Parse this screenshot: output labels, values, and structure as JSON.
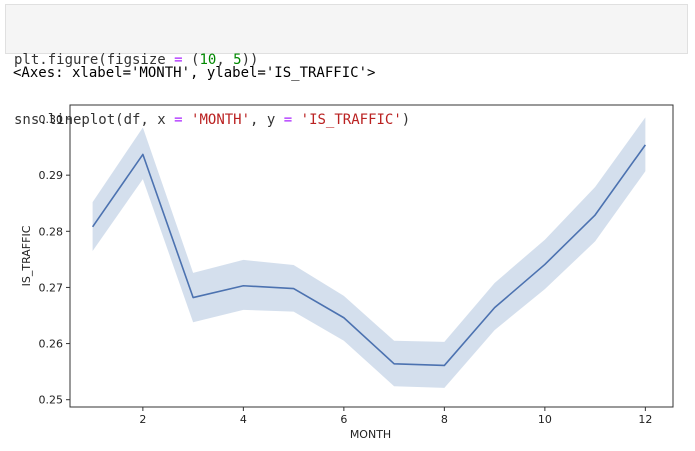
{
  "code_cell": {
    "line1": {
      "fn": "plt.figure(figsize ",
      "op": "=",
      "paren_open": " (",
      "n1": "10",
      "sep": ", ",
      "n2": "5",
      "paren_close": "))"
    },
    "line2": {
      "fn": "sns.lineplot(df, x ",
      "op1": "=",
      "x_val": "'MONTH'",
      "sep": ", y ",
      "op2": "=",
      "y_val": "'IS_TRAFFIC'",
      "close": ")"
    }
  },
  "output": {
    "text": "<Axes: xlabel='MONTH', ylabel='IS_TRAFFIC'>"
  },
  "colors": {
    "line": "#4c72b0",
    "band": "#c6d4e7",
    "axis": "#333333"
  },
  "chart_data": {
    "type": "line",
    "xlabel": "MONTH",
    "ylabel": "IS_TRAFFIC",
    "xlim": [
      0.55,
      12.55
    ],
    "ylim": [
      0.2487,
      0.3025
    ],
    "xticks": [
      2,
      4,
      6,
      8,
      10,
      12
    ],
    "xtick_labels": [
      "2",
      "4",
      "6",
      "8",
      "10",
      "12"
    ],
    "yticks": [
      0.25,
      0.26,
      0.27,
      0.28,
      0.29,
      0.3
    ],
    "ytick_labels": [
      "0.25",
      "0.26",
      "0.27",
      "0.28",
      "0.29",
      "0.30"
    ],
    "grid": false,
    "series": [
      {
        "x": [
          1,
          2,
          3,
          4,
          5,
          6,
          7,
          8,
          9,
          10,
          11,
          12
        ],
        "values": [
          0.2808,
          0.2937,
          0.2682,
          0.2703,
          0.2698,
          0.2646,
          0.2564,
          0.2561,
          0.2664,
          0.2741,
          0.2829,
          0.2954
        ],
        "ci_lower": [
          0.2765,
          0.2893,
          0.2638,
          0.266,
          0.2657,
          0.2605,
          0.2524,
          0.2521,
          0.2624,
          0.2697,
          0.2782,
          0.2907
        ],
        "ci_upper": [
          0.2852,
          0.2985,
          0.2726,
          0.2749,
          0.274,
          0.2685,
          0.2605,
          0.2603,
          0.2708,
          0.2785,
          0.2879,
          0.3003
        ]
      }
    ]
  }
}
